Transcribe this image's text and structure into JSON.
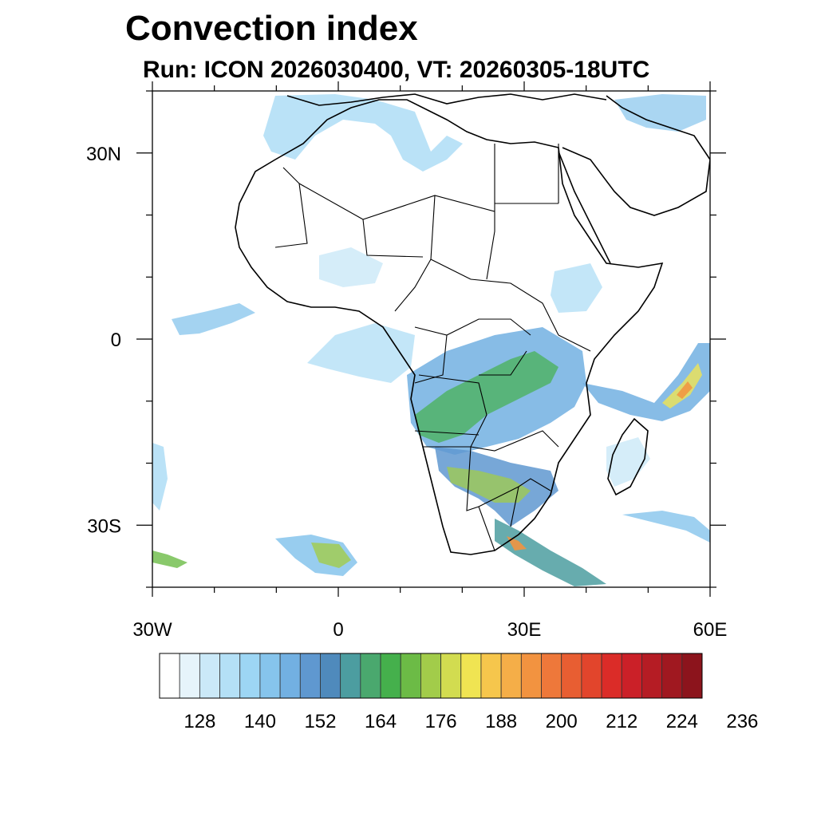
{
  "map": {
    "title": "Convection index",
    "subtitle": "Run: ICON 2026030400,  VT: 20260305-18UTC",
    "x_ticks": [
      {
        "label": "30W",
        "lon": -30
      },
      {
        "label": "0",
        "lon": 0
      },
      {
        "label": "30E",
        "lon": 30
      },
      {
        "label": "60E",
        "lon": 60
      }
    ],
    "y_ticks": [
      {
        "label": "30N",
        "lat": 30
      },
      {
        "label": "0",
        "lat": 0
      },
      {
        "label": "30S",
        "lat": -30
      }
    ],
    "lon_range": [
      -30,
      60
    ],
    "lat_range": [
      -40,
      40
    ],
    "frame_color": "#000000"
  },
  "colorbar": {
    "labels": [
      "128",
      "140",
      "152",
      "164",
      "176",
      "188",
      "200",
      "212",
      "224",
      "236"
    ],
    "colors": [
      "#ffffff",
      "#e6f4fb",
      "#cbe9f8",
      "#b4e0f6",
      "#9dd6f4",
      "#86c4ec",
      "#72b0e2",
      "#5f98d0",
      "#4f8abc",
      "#4c9da0",
      "#4aa86e",
      "#45b04c",
      "#6cbb46",
      "#a2cc4a",
      "#d2dc50",
      "#f0e452",
      "#f6c64c",
      "#f5ae48",
      "#f29340",
      "#ee783a",
      "#e85e32",
      "#e2452c",
      "#db2c28",
      "#cb2028",
      "#b51c24",
      "#a01820",
      "#8c141c"
    ]
  }
}
